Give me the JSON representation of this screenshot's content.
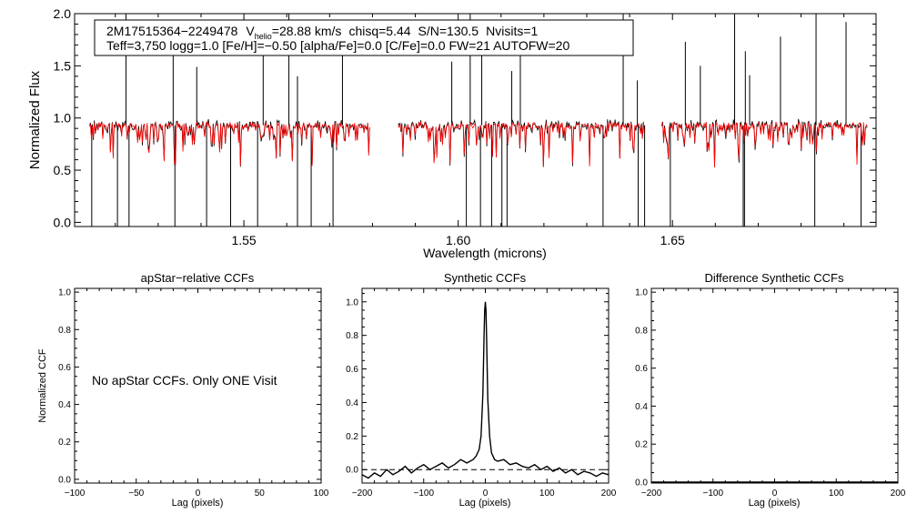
{
  "chart_data": [
    {
      "type": "line",
      "id": "spectrum",
      "title_line1": {
        "star_id": "2M17515364−2249478",
        "vhelio_prefix": "V",
        "vhelio_sub": "helio",
        "vhelio_value": "=28.88 km/s",
        "chisq": "chisq=5.44",
        "snr": "S/N=130.5",
        "nvisits": "Nvisits=1"
      },
      "title_line2": "Teff=3,750 logg=1.0 [Fe/H]=−0.50 [alpha/Fe]=0.0 [C/Fe]=0.0 FW=21 AUTOFW=20",
      "xlabel": "Wavelength (microns)",
      "ylabel": "Normalized Flux",
      "xlim": [
        1.5105,
        1.6975
      ],
      "ylim": [
        -0.04,
        2.0
      ],
      "xticks": [
        {
          "v": 1.55,
          "label": "1.55"
        },
        {
          "v": 1.6,
          "label": "1.60"
        },
        {
          "v": 1.65,
          "label": "1.65"
        }
      ],
      "yticks": [
        {
          "v": 0.0,
          "label": "0.0"
        },
        {
          "v": 0.5,
          "label": "0.5"
        },
        {
          "v": 1.0,
          "label": "1.0"
        },
        {
          "v": 1.5,
          "label": "1.5"
        },
        {
          "v": 2.0,
          "label": "2.0"
        }
      ],
      "chips": [
        [
          1.514,
          1.5795
        ],
        [
          1.586,
          1.6435
        ],
        [
          1.6475,
          1.6955
        ]
      ],
      "continuum": 0.93,
      "series": [
        {
          "name": "observed",
          "color": "#000000"
        },
        {
          "name": "model",
          "color": "#ff0000"
        }
      ],
      "spikes_up": [
        1.5225,
        1.5335,
        1.539,
        1.5545,
        1.5605,
        1.5625,
        1.573,
        1.5985,
        1.6028,
        1.6055,
        1.6125,
        1.6145,
        1.6385,
        1.6418,
        1.653,
        1.6565,
        1.6645,
        1.667,
        1.668,
        1.6752,
        1.6835,
        1.6905
      ],
      "spikes_down": [
        1.5145,
        1.5205,
        1.5232,
        1.5339,
        1.5413,
        1.5469,
        1.5532,
        1.5625,
        1.5657,
        1.5708,
        1.6019,
        1.6052,
        1.6078,
        1.6102,
        1.6114,
        1.6338,
        1.642,
        1.6435,
        1.6495,
        1.6665,
        1.6668,
        1.6832,
        1.694
      ]
    },
    {
      "type": "line",
      "id": "apstar_ccf",
      "title": "apStar−relative CCFs",
      "xlabel": "Lag (pixels)",
      "ylabel": "Normalized CCF",
      "xlim": [
        -100,
        100
      ],
      "ylim": [
        -0.02,
        1.02
      ],
      "xticks": [
        {
          "v": -100,
          "label": "−100"
        },
        {
          "v": -50,
          "label": "−50"
        },
        {
          "v": 0,
          "label": "0"
        },
        {
          "v": 50,
          "label": "50"
        },
        {
          "v": 100,
          "label": "100"
        }
      ],
      "yticks": [
        {
          "v": 0.0,
          "label": "0.0"
        },
        {
          "v": 0.2,
          "label": "0.2"
        },
        {
          "v": 0.4,
          "label": "0.4"
        },
        {
          "v": 0.6,
          "label": "0.6"
        },
        {
          "v": 0.8,
          "label": "0.8"
        },
        {
          "v": 1.0,
          "label": "1.0"
        }
      ],
      "message": "No apStar CCFs.  Only ONE Visit",
      "series": []
    },
    {
      "type": "line",
      "id": "synthetic_ccf",
      "title": "Synthetic CCFs",
      "xlabel": "Lag (pixels)",
      "xlim": [
        -200,
        200
      ],
      "ylim": [
        -0.08,
        1.08
      ],
      "xticks": [
        {
          "v": -200,
          "label": "−200"
        },
        {
          "v": -100,
          "label": "−100"
        },
        {
          "v": 0,
          "label": "0"
        },
        {
          "v": 100,
          "label": "100"
        },
        {
          "v": 200,
          "label": "200"
        }
      ],
      "yticks": [
        {
          "v": 0.0,
          "label": "0.0"
        },
        {
          "v": 0.2,
          "label": "0.2"
        },
        {
          "v": 0.4,
          "label": "0.4"
        },
        {
          "v": 0.6,
          "label": "0.6"
        },
        {
          "v": 0.8,
          "label": "0.8"
        },
        {
          "v": 1.0,
          "label": "1.0"
        }
      ],
      "baseline": 0.0,
      "series": [
        {
          "name": "ccf",
          "color": "#000000",
          "x": [
            -200,
            -190,
            -180,
            -170,
            -160,
            -150,
            -140,
            -130,
            -120,
            -110,
            -100,
            -90,
            -80,
            -70,
            -60,
            -50,
            -40,
            -30,
            -20,
            -15,
            -10,
            -7,
            -4,
            -2,
            -1,
            0,
            1,
            2,
            4,
            7,
            10,
            15,
            20,
            30,
            40,
            50,
            60,
            70,
            80,
            90,
            100,
            110,
            120,
            130,
            140,
            150,
            160,
            170,
            180,
            190,
            200
          ],
          "y": [
            -0.03,
            -0.05,
            -0.02,
            -0.04,
            0.0,
            -0.03,
            -0.01,
            0.02,
            -0.02,
            0.01,
            0.03,
            0.0,
            0.02,
            0.04,
            0.01,
            0.03,
            0.06,
            0.04,
            0.06,
            0.08,
            0.12,
            0.2,
            0.45,
            0.8,
            0.95,
            1.0,
            0.95,
            0.78,
            0.42,
            0.2,
            0.1,
            0.06,
            0.05,
            0.06,
            0.03,
            0.04,
            0.02,
            0.01,
            0.03,
            0.0,
            0.02,
            -0.01,
            0.01,
            -0.02,
            0.0,
            -0.03,
            -0.01,
            -0.02,
            -0.04,
            -0.02,
            -0.03
          ]
        }
      ]
    },
    {
      "type": "line",
      "id": "difference_ccf",
      "title": "Difference Synthetic CCFs",
      "xlabel": "Lag (pixels)",
      "xlim": [
        -200,
        200
      ],
      "ylim": [
        -0.005,
        1.02
      ],
      "xticks": [
        {
          "v": -200,
          "label": "−200"
        },
        {
          "v": -100,
          "label": "−100"
        },
        {
          "v": 0,
          "label": "0"
        },
        {
          "v": 100,
          "label": "100"
        },
        {
          "v": 200,
          "label": "200"
        }
      ],
      "yticks": [
        {
          "v": 0.0,
          "label": "0.0"
        },
        {
          "v": 0.2,
          "label": "0.2"
        },
        {
          "v": 0.4,
          "label": "0.4"
        },
        {
          "v": 0.6,
          "label": "0.6"
        },
        {
          "v": 0.8,
          "label": "0.8"
        },
        {
          "v": 1.0,
          "label": "1.0"
        }
      ],
      "series": [
        {
          "name": "difference",
          "color": "#000000",
          "x": [
            -200,
            200
          ],
          "y": [
            0.0,
            0.0
          ]
        }
      ]
    }
  ]
}
